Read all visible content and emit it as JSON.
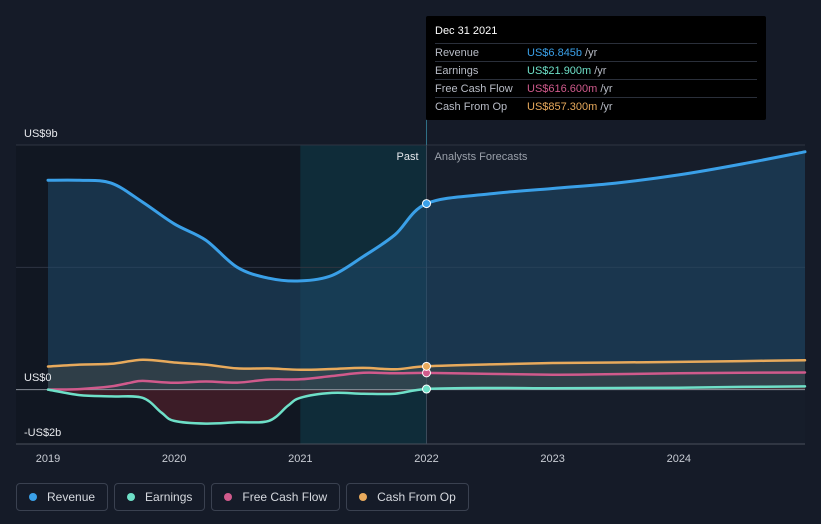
{
  "tooltip": {
    "date": "Dec 31 2021",
    "rows": [
      {
        "label": "Revenue",
        "value": "US$6.845b",
        "unit": "/yr",
        "color": "#3aa0e8"
      },
      {
        "label": "Earnings",
        "value": "US$21.900m",
        "unit": "/yr",
        "color": "#6ee0c8"
      },
      {
        "label": "Free Cash Flow",
        "value": "US$616.600m",
        "unit": "/yr",
        "color": "#d05a8c"
      },
      {
        "label": "Cash From Op",
        "value": "US$857.300m",
        "unit": "/yr",
        "color": "#e8aa5c"
      }
    ]
  },
  "legend": [
    {
      "label": "Revenue",
      "color": "#3aa0e8"
    },
    {
      "label": "Earnings",
      "color": "#6ee0c8"
    },
    {
      "label": "Free Cash Flow",
      "color": "#d05a8c"
    },
    {
      "label": "Cash From Op",
      "color": "#e8aa5c"
    }
  ],
  "chart_data": {
    "type": "line",
    "title": "",
    "xlabel": "",
    "ylabel": "",
    "ylim": [
      -2,
      9
    ],
    "y_tick_labels": [
      {
        "value": 9,
        "label": "US$9b"
      },
      {
        "value": 0,
        "label": "US$0"
      },
      {
        "value": -2,
        "label": "-US$2b"
      }
    ],
    "x_tick_labels": [
      {
        "value": 2019,
        "label": "2019"
      },
      {
        "value": 2020,
        "label": "2020"
      },
      {
        "value": 2021,
        "label": "2021"
      },
      {
        "value": 2022,
        "label": "2022"
      },
      {
        "value": 2023,
        "label": "2023"
      },
      {
        "value": 2024,
        "label": "2024"
      }
    ],
    "divider": {
      "x": 2022,
      "past_label": "Past",
      "forecast_label": "Analysts Forecasts"
    },
    "series": [
      {
        "name": "Revenue",
        "color": "#3aa0e8",
        "points": [
          [
            2019.0,
            7.7
          ],
          [
            2019.25,
            7.7
          ],
          [
            2019.5,
            7.6
          ],
          [
            2019.75,
            6.9
          ],
          [
            2020.0,
            6.1
          ],
          [
            2020.25,
            5.5
          ],
          [
            2020.5,
            4.5
          ],
          [
            2020.75,
            4.1
          ],
          [
            2021.0,
            4.0
          ],
          [
            2021.25,
            4.2
          ],
          [
            2021.5,
            4.9
          ],
          [
            2021.75,
            5.7
          ],
          [
            2022.0,
            6.845
          ],
          [
            2022.5,
            7.2
          ],
          [
            2023.0,
            7.4
          ],
          [
            2023.5,
            7.6
          ],
          [
            2024.0,
            7.9
          ],
          [
            2024.5,
            8.3
          ],
          [
            2025.0,
            8.75
          ]
        ]
      },
      {
        "name": "Earnings",
        "color": "#6ee0c8",
        "points": [
          [
            2019.0,
            0.0
          ],
          [
            2019.25,
            -0.2
          ],
          [
            2019.5,
            -0.25
          ],
          [
            2019.75,
            -0.3
          ],
          [
            2019.9,
            -0.85
          ],
          [
            2020.0,
            -1.15
          ],
          [
            2020.25,
            -1.25
          ],
          [
            2020.5,
            -1.2
          ],
          [
            2020.75,
            -1.15
          ],
          [
            2020.9,
            -0.6
          ],
          [
            2021.0,
            -0.3
          ],
          [
            2021.25,
            -0.12
          ],
          [
            2021.5,
            -0.15
          ],
          [
            2021.75,
            -0.15
          ],
          [
            2022.0,
            0.0219
          ],
          [
            2022.5,
            0.06
          ],
          [
            2023.0,
            0.05
          ],
          [
            2023.5,
            0.06
          ],
          [
            2024.0,
            0.07
          ],
          [
            2024.5,
            0.1
          ],
          [
            2025.0,
            0.12
          ]
        ]
      },
      {
        "name": "Free Cash Flow",
        "color": "#d05a8c",
        "points": [
          [
            2019.0,
            0.0
          ],
          [
            2019.25,
            0.02
          ],
          [
            2019.5,
            0.12
          ],
          [
            2019.65,
            0.25
          ],
          [
            2019.75,
            0.32
          ],
          [
            2020.0,
            0.25
          ],
          [
            2020.25,
            0.3
          ],
          [
            2020.5,
            0.26
          ],
          [
            2020.75,
            0.37
          ],
          [
            2021.0,
            0.38
          ],
          [
            2021.25,
            0.5
          ],
          [
            2021.5,
            0.62
          ],
          [
            2021.75,
            0.6
          ],
          [
            2022.0,
            0.6166
          ],
          [
            2022.5,
            0.58
          ],
          [
            2023.0,
            0.55
          ],
          [
            2023.5,
            0.57
          ],
          [
            2024.0,
            0.6
          ],
          [
            2024.5,
            0.62
          ],
          [
            2025.0,
            0.63
          ]
        ]
      },
      {
        "name": "Cash From Op",
        "color": "#e8aa5c",
        "points": [
          [
            2019.0,
            0.85
          ],
          [
            2019.25,
            0.92
          ],
          [
            2019.5,
            0.95
          ],
          [
            2019.75,
            1.1
          ],
          [
            2020.0,
            1.0
          ],
          [
            2020.25,
            0.92
          ],
          [
            2020.5,
            0.78
          ],
          [
            2020.75,
            0.78
          ],
          [
            2021.0,
            0.73
          ],
          [
            2021.25,
            0.76
          ],
          [
            2021.5,
            0.8
          ],
          [
            2021.75,
            0.75
          ],
          [
            2022.0,
            0.8573
          ],
          [
            2022.5,
            0.93
          ],
          [
            2023.0,
            0.98
          ],
          [
            2023.5,
            1.0
          ],
          [
            2024.0,
            1.02
          ],
          [
            2024.5,
            1.05
          ],
          [
            2025.0,
            1.08
          ]
        ]
      }
    ]
  }
}
